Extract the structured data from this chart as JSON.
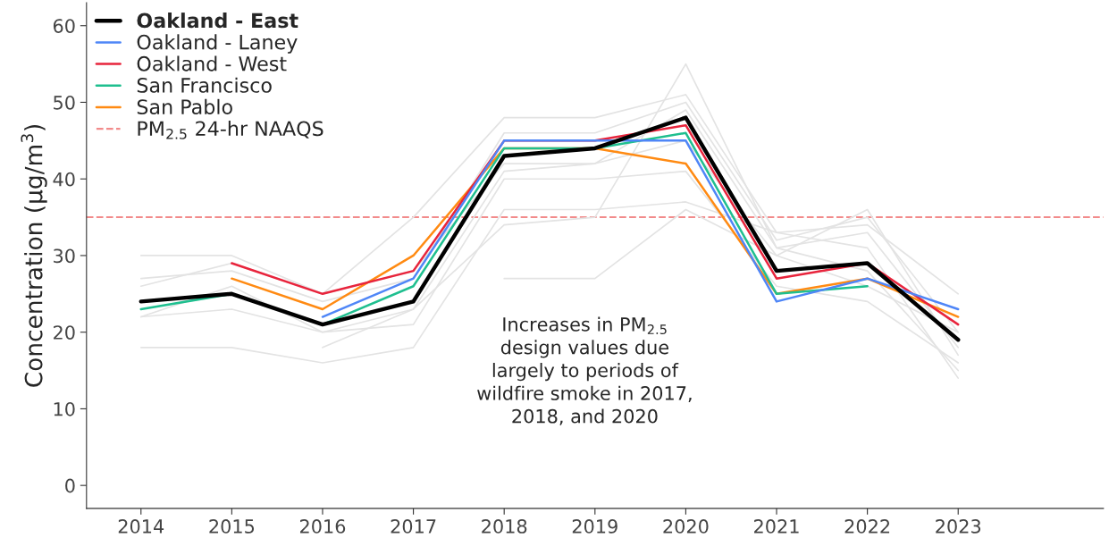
{
  "chart_data": {
    "type": "line",
    "ylabel": "Concentration (µg/m$^{3}$)",
    "x": [
      2014,
      2015,
      2016,
      2017,
      2018,
      2019,
      2020,
      2021,
      2022,
      2023
    ],
    "xlim": [
      2013.4,
      2024.6
    ],
    "xticks": [
      2014,
      2015,
      2016,
      2017,
      2018,
      2019,
      2020,
      2021,
      2022,
      2023
    ],
    "ylim": [
      -3,
      63
    ],
    "yticks": [
      0,
      10,
      20,
      30,
      40,
      50,
      60
    ],
    "grid": false,
    "legend": "top left",
    "line_style": "solid",
    "marker": "none",
    "series": [
      {
        "color": "#e3e3e3",
        "values": [
          30,
          30,
          25,
          35,
          48,
          48,
          51,
          33,
          34,
          25
        ]
      },
      {
        "color": "#e3e3e3",
        "values": [
          27,
          28,
          24,
          27,
          46,
          46,
          50,
          32,
          35,
          20
        ]
      },
      {
        "color": "#e3e3e3",
        "values": [
          26,
          29,
          25,
          28,
          42,
          42,
          49,
          31,
          33,
          18
        ]
      },
      {
        "color": "#e3e3e3",
        "values": [
          22,
          26,
          20,
          23,
          41,
          42,
          45,
          30,
          36,
          17
        ]
      },
      {
        "color": "#e3e3e3",
        "values": [
          22,
          23,
          20,
          21,
          40,
          40,
          41,
          26,
          24,
          16
        ]
      },
      {
        "color": "#e3e3e3",
        "values": [
          18,
          18,
          16,
          18,
          36,
          36,
          37,
          33,
          31,
          14
        ]
      },
      {
        "color": "#e3e3e3",
        "values": [
          null,
          null,
          18,
          23,
          34,
          35,
          55,
          31,
          28,
          15
        ]
      },
      {
        "color": "#e3e3e3",
        "values": [
          null,
          null,
          null,
          null,
          27,
          27,
          36,
          30,
          26,
          20
        ]
      },
      {
        "name": "Oakland - Laney",
        "color": "#4f86f7",
        "values": [
          null,
          null,
          22,
          27,
          45,
          45,
          45,
          24,
          27,
          23
        ]
      },
      {
        "name": "Oakland - West",
        "color": "#e8243c",
        "values": [
          null,
          29,
          25,
          28,
          45,
          45,
          47,
          27,
          29,
          21
        ]
      },
      {
        "name": "San Francisco",
        "color": "#1fbf8f",
        "values": [
          23,
          25,
          21,
          26,
          44,
          44,
          46,
          25,
          26,
          null
        ]
      },
      {
        "name": "San Pablo",
        "color": "#ff8a12",
        "values": [
          null,
          27,
          23,
          30,
          44,
          44,
          42,
          25,
          27,
          22
        ]
      },
      {
        "name": "Oakland - East",
        "color": "#000000",
        "values": [
          24,
          25,
          21,
          24,
          43,
          44,
          48,
          28,
          29,
          19
        ]
      }
    ],
    "ref_lines": [
      {
        "axis": "y",
        "value": 35,
        "label": "PM$_{2.5}$ 24-hr NAAQS",
        "color": "#f28b8b",
        "line_style": "dashed"
      }
    ],
    "annotations": [
      "Increases in PM$_{2.5}$\ndesign values due\nlargely to periods of\nwildfire smoke in 2017,\n2018, and 2020"
    ]
  }
}
